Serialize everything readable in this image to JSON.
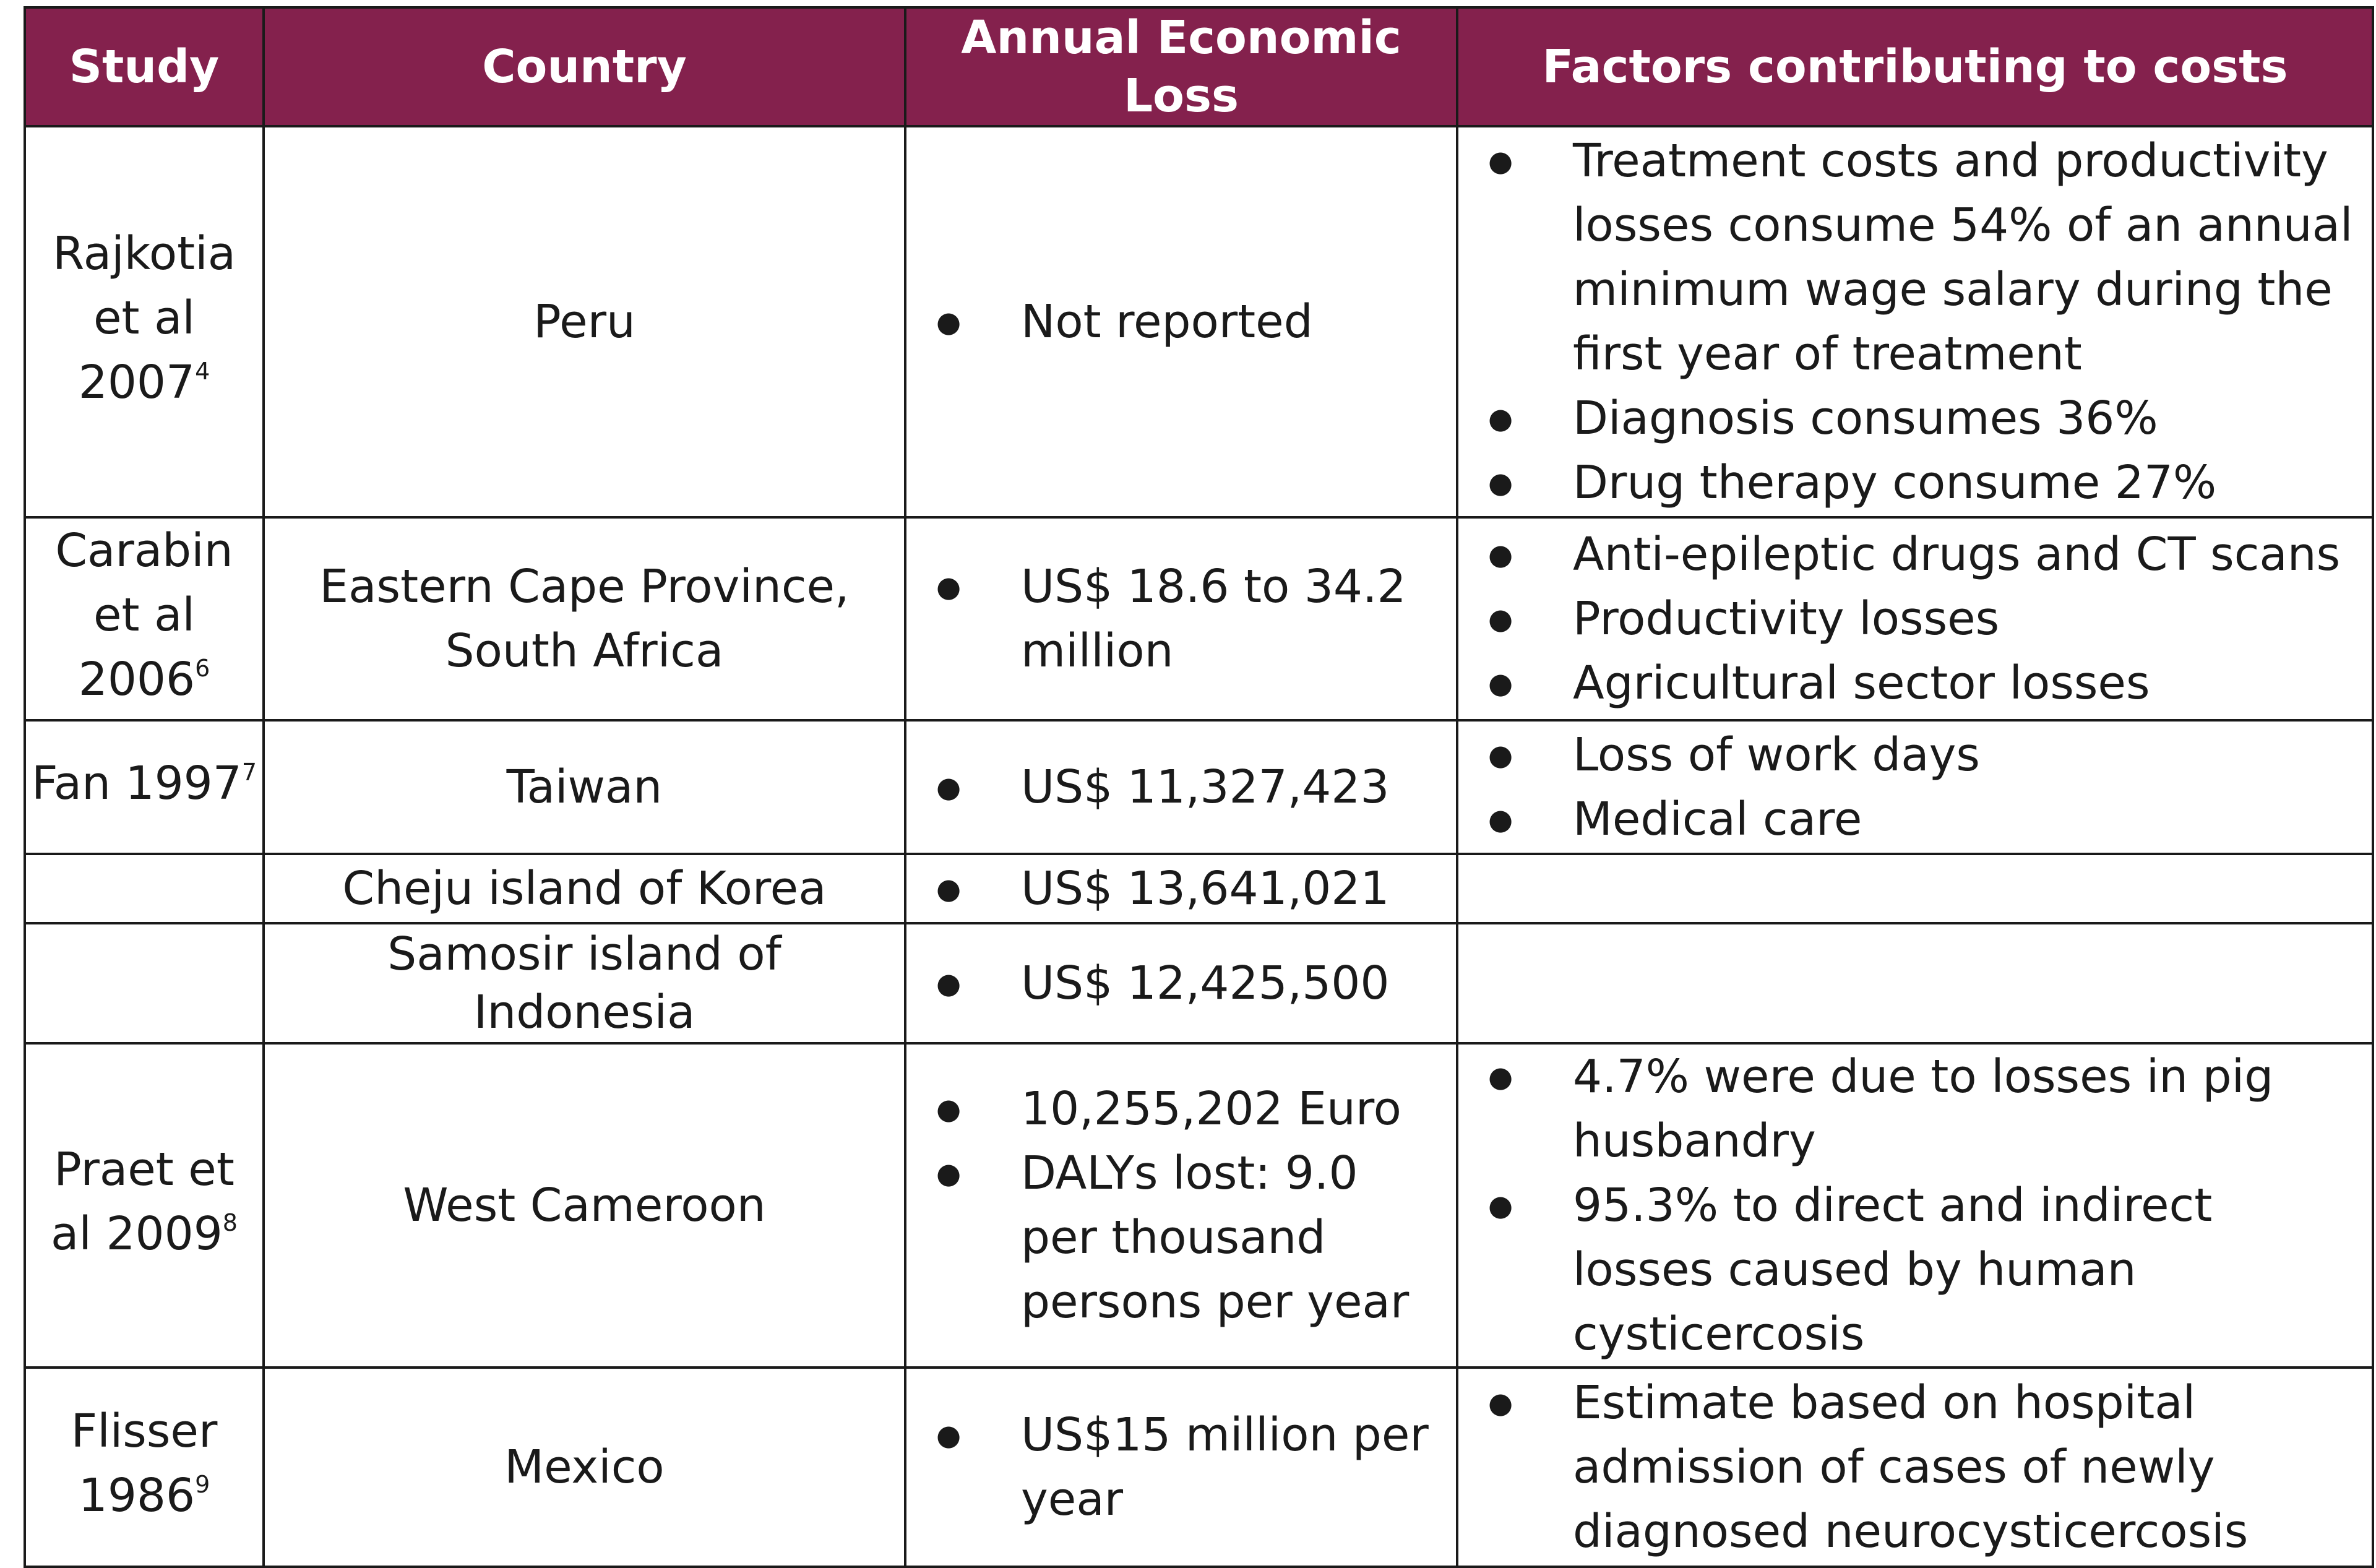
{
  "header": {
    "study": "Study",
    "country": "Country",
    "loss": "Annual Economic Loss",
    "factors": "Factors contributing to costs"
  },
  "rows": [
    {
      "study": "Rajkotia et al 2007",
      "study_sup": "4",
      "country": "Peru",
      "loss": [
        "Not reported"
      ],
      "factors": [
        "Treatment costs and productivity losses consume 54% of an annual minimum wage salary during the first year of treatment",
        "Diagnosis consumes 36%",
        "Drug therapy consume 27%"
      ]
    },
    {
      "study": "Carabin et al 2006",
      "study_sup": "6",
      "country": "Eastern Cape Province, South Africa",
      "loss": [
        "US$ 18.6 to 34.2 million"
      ],
      "factors": [
        "Anti-epileptic drugs and CT scans",
        "Productivity losses",
        "Agricultural sector losses"
      ]
    },
    {
      "study": "Fan 1997",
      "study_sup": "7",
      "country": "Taiwan",
      "loss": [
        "US$ 11,327,423"
      ],
      "factors": [
        "Loss of work days",
        "Medical care"
      ]
    },
    {
      "study": "",
      "study_sup": "",
      "country": "Cheju island of Korea",
      "loss": [
        "US$ 13,641,021"
      ],
      "factors": []
    },
    {
      "study": "",
      "study_sup": "",
      "country": "Samosir island of Indonesia",
      "loss": [
        "US$ 12,425,500"
      ],
      "factors": []
    },
    {
      "study": "Praet et al 2009",
      "study_sup": "8",
      "country": "West Cameroon",
      "loss": [
        "10,255,202 Euro",
        "DALYs lost: 9.0 per thousand persons per year"
      ],
      "factors": [
        "4.7% were due to losses in pig husbandry",
        "95.3% to direct and indirect losses caused by human cysticercosis"
      ]
    },
    {
      "study": "Flisser 1986",
      "study_sup": "9",
      "country": "Mexico",
      "loss": [
        "US$15 million per year"
      ],
      "factors": [
        "Estimate based on hospital admission of cases of newly diagnosed neurocysticercosis"
      ]
    }
  ],
  "colors": {
    "header_bg": "#84214d",
    "header_text": "#ffffff",
    "border": "#1a1a1a"
  }
}
